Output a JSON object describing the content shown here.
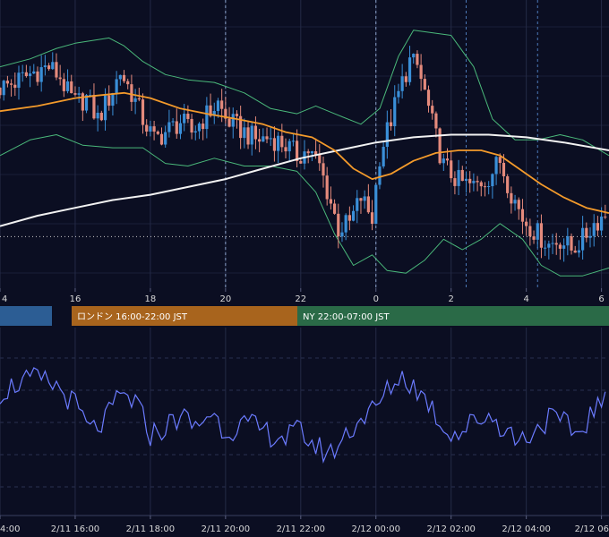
{
  "colors": {
    "background": "#0b0e22",
    "candle_up": "#3a8fd8",
    "candle_down": "#e48a7c",
    "bollinger": "#4ab87a",
    "ma_short": "#f39a2b",
    "ma_long": "#f2f2f2",
    "oscillator": "#6b7bff",
    "tokyo": "#2c5d94",
    "london": "#a8641d",
    "ny": "#2a6a47"
  },
  "sessions": [
    {
      "name": "tokyo",
      "label": ""
    },
    {
      "name": "london",
      "label": "ロンドン 16:00-22:00 JST"
    },
    {
      "name": "ny",
      "label": "NY 22:00-07:00 JST"
    }
  ],
  "chart_data": [
    {
      "type": "candlestick",
      "indicators": [
        "bollinger-bands",
        "moving-average",
        "moving-average-long"
      ],
      "x_ticks": [
        "4",
        "16",
        "18",
        "20",
        "22",
        "0",
        "2",
        "4",
        "6"
      ],
      "x_hours": [
        14,
        16,
        18,
        20,
        22,
        24,
        26,
        28,
        30
      ],
      "x_range": [
        14.0,
        30.2
      ],
      "y_range": [
        0,
        100
      ],
      "grid": true,
      "candle_step_hours": 0.1,
      "close_path": [
        [
          14.0,
          74
        ],
        [
          14.4,
          76
        ],
        [
          14.9,
          80
        ],
        [
          15.3,
          82
        ],
        [
          15.6,
          78
        ],
        [
          15.8,
          72
        ],
        [
          16.0,
          68
        ],
        [
          16.3,
          70
        ],
        [
          16.6,
          62
        ],
        [
          16.9,
          70
        ],
        [
          17.2,
          80
        ],
        [
          17.5,
          72
        ],
        [
          17.8,
          62
        ],
        [
          18.1,
          54
        ],
        [
          18.4,
          57
        ],
        [
          18.8,
          61
        ],
        [
          19.1,
          57
        ],
        [
          19.4,
          62
        ],
        [
          19.8,
          68
        ],
        [
          20.0,
          62
        ],
        [
          20.4,
          58
        ],
        [
          20.8,
          54
        ],
        [
          21.2,
          55
        ],
        [
          21.6,
          52
        ],
        [
          21.9,
          48
        ],
        [
          22.2,
          50
        ],
        [
          22.5,
          44
        ],
        [
          22.8,
          30
        ],
        [
          23.0,
          20
        ],
        [
          23.3,
          22
        ],
        [
          23.6,
          32
        ],
        [
          23.9,
          24
        ],
        [
          24.1,
          48
        ],
        [
          24.4,
          62
        ],
        [
          24.7,
          76
        ],
        [
          24.9,
          84
        ],
        [
          25.1,
          82
        ],
        [
          25.3,
          72
        ],
        [
          25.5,
          60
        ],
        [
          25.8,
          44
        ],
        [
          26.2,
          38
        ],
        [
          26.6,
          36
        ],
        [
          27.0,
          40
        ],
        [
          27.3,
          46
        ],
        [
          27.6,
          34
        ],
        [
          27.9,
          24
        ],
        [
          28.3,
          18
        ],
        [
          28.6,
          14
        ],
        [
          28.9,
          16
        ],
        [
          29.2,
          12
        ],
        [
          29.5,
          16
        ],
        [
          29.8,
          22
        ],
        [
          30.2,
          27
        ]
      ],
      "ma_long_path": [
        [
          14.0,
          21
        ],
        [
          15.0,
          25
        ],
        [
          16.0,
          28
        ],
        [
          17.0,
          31
        ],
        [
          18.0,
          33
        ],
        [
          19.0,
          36
        ],
        [
          20.0,
          39
        ],
        [
          21.0,
          43
        ],
        [
          22.0,
          47
        ],
        [
          23.0,
          50
        ],
        [
          24.0,
          53
        ],
        [
          25.0,
          55
        ],
        [
          26.0,
          56
        ],
        [
          27.0,
          56
        ],
        [
          28.0,
          55
        ],
        [
          29.0,
          53
        ],
        [
          30.2,
          50
        ]
      ],
      "ma_short_path": [
        [
          14.0,
          65
        ],
        [
          15.0,
          67
        ],
        [
          16.0,
          70
        ],
        [
          16.6,
          71
        ],
        [
          17.3,
          72
        ],
        [
          18.0,
          70
        ],
        [
          18.8,
          66
        ],
        [
          19.5,
          64
        ],
        [
          20.3,
          62
        ],
        [
          21.0,
          60
        ],
        [
          21.6,
          57
        ],
        [
          22.3,
          55
        ],
        [
          22.9,
          50
        ],
        [
          23.4,
          43
        ],
        [
          23.9,
          39
        ],
        [
          24.4,
          41
        ],
        [
          25.0,
          46
        ],
        [
          25.6,
          49
        ],
        [
          26.2,
          50
        ],
        [
          26.8,
          50
        ],
        [
          27.3,
          48
        ],
        [
          27.8,
          43
        ],
        [
          28.4,
          37
        ],
        [
          29.0,
          32
        ],
        [
          29.6,
          28
        ],
        [
          30.2,
          26
        ]
      ],
      "bb_upper_path": [
        [
          14.0,
          82
        ],
        [
          14.8,
          85
        ],
        [
          15.5,
          89
        ],
        [
          16.0,
          91
        ],
        [
          16.9,
          93
        ],
        [
          17.3,
          90
        ],
        [
          17.8,
          84
        ],
        [
          18.4,
          79
        ],
        [
          19.0,
          77
        ],
        [
          19.7,
          76
        ],
        [
          20.5,
          72
        ],
        [
          21.2,
          66
        ],
        [
          21.9,
          64
        ],
        [
          22.4,
          67
        ],
        [
          22.9,
          64
        ],
        [
          23.6,
          60
        ],
        [
          24.1,
          66
        ],
        [
          24.6,
          86
        ],
        [
          25.0,
          96
        ],
        [
          25.5,
          95
        ],
        [
          26.0,
          94
        ],
        [
          26.6,
          82
        ],
        [
          27.1,
          62
        ],
        [
          27.7,
          54
        ],
        [
          28.3,
          54
        ],
        [
          28.9,
          56
        ],
        [
          29.5,
          54
        ],
        [
          30.2,
          48
        ]
      ],
      "bb_lower_path": [
        [
          14.0,
          48
        ],
        [
          14.8,
          54
        ],
        [
          15.5,
          56
        ],
        [
          16.2,
          52
        ],
        [
          17.0,
          51
        ],
        [
          17.8,
          51
        ],
        [
          18.4,
          45
        ],
        [
          19.0,
          44
        ],
        [
          19.7,
          47
        ],
        [
          20.5,
          44
        ],
        [
          21.2,
          44
        ],
        [
          21.9,
          42
        ],
        [
          22.4,
          34
        ],
        [
          22.9,
          18
        ],
        [
          23.4,
          6
        ],
        [
          23.9,
          10
        ],
        [
          24.3,
          4
        ],
        [
          24.8,
          3
        ],
        [
          25.3,
          8
        ],
        [
          25.8,
          16
        ],
        [
          26.3,
          12
        ],
        [
          26.8,
          16
        ],
        [
          27.3,
          22
        ],
        [
          27.9,
          16
        ],
        [
          28.4,
          6
        ],
        [
          28.9,
          2
        ],
        [
          29.5,
          2
        ],
        [
          30.2,
          5
        ]
      ],
      "price_line_level": 17
    },
    {
      "type": "line",
      "series_color": "#6b7bff",
      "x_ticks": [
        "4:00",
        "2/11 16:00",
        "2/11 18:00",
        "2/11 20:00",
        "2/11 22:00",
        "2/12 00:00",
        "2/12 02:00",
        "2/12 04:00",
        "2/12 06"
      ],
      "x_hours": [
        14,
        16,
        18,
        20,
        22,
        24,
        26,
        28,
        30
      ],
      "x_range": [
        14.0,
        30.2
      ],
      "y_range": [
        0,
        100
      ],
      "grid": true,
      "value_step_hours": 0.1,
      "path": [
        [
          14.0,
          72
        ],
        [
          14.5,
          78
        ],
        [
          15.0,
          80
        ],
        [
          15.5,
          76
        ],
        [
          16.0,
          64
        ],
        [
          16.4,
          48
        ],
        [
          16.8,
          54
        ],
        [
          17.2,
          70
        ],
        [
          17.6,
          66
        ],
        [
          18.0,
          46
        ],
        [
          18.4,
          50
        ],
        [
          18.8,
          58
        ],
        [
          19.2,
          50
        ],
        [
          19.6,
          60
        ],
        [
          20.0,
          48
        ],
        [
          20.4,
          52
        ],
        [
          20.8,
          50
        ],
        [
          21.2,
          46
        ],
        [
          21.6,
          44
        ],
        [
          22.0,
          48
        ],
        [
          22.4,
          38
        ],
        [
          22.8,
          34
        ],
        [
          23.2,
          46
        ],
        [
          23.6,
          56
        ],
        [
          24.0,
          62
        ],
        [
          24.4,
          76
        ],
        [
          24.7,
          82
        ],
        [
          25.0,
          76
        ],
        [
          25.4,
          66
        ],
        [
          25.8,
          50
        ],
        [
          26.2,
          46
        ],
        [
          26.6,
          54
        ],
        [
          27.0,
          58
        ],
        [
          27.4,
          50
        ],
        [
          27.8,
          42
        ],
        [
          28.2,
          48
        ],
        [
          28.6,
          56
        ],
        [
          29.0,
          52
        ],
        [
          29.4,
          46
        ],
        [
          29.8,
          62
        ],
        [
          30.2,
          66
        ]
      ]
    }
  ]
}
